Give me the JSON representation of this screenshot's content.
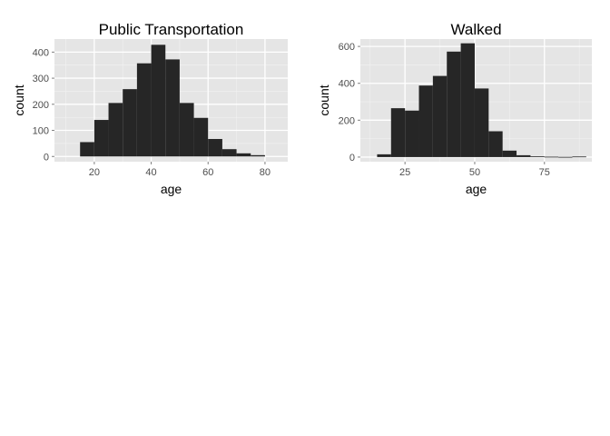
{
  "chart_data": [
    {
      "type": "bar",
      "title": "Public Transportation",
      "xlabel": "age",
      "ylabel": "count",
      "xlim": [
        6,
        88
      ],
      "ylim": [
        -20,
        450
      ],
      "xticks": [
        20,
        40,
        60,
        80
      ],
      "yticks": [
        0,
        100,
        200,
        300,
        400
      ],
      "binwidth": 5,
      "bins": [
        15,
        20,
        25,
        30,
        35,
        40,
        45,
        50,
        55,
        60,
        65,
        70,
        75
      ],
      "values": [
        55,
        140,
        205,
        258,
        357,
        428,
        372,
        205,
        148,
        67,
        28,
        12,
        5
      ],
      "grid": true
    },
    {
      "type": "bar",
      "title": "Walked",
      "xlabel": "age",
      "ylabel": "count",
      "xlim": [
        9,
        92
      ],
      "ylim": [
        -25,
        640
      ],
      "xticks": [
        25,
        50,
        75
      ],
      "yticks": [
        0,
        200,
        400,
        600
      ],
      "binwidth": 5,
      "bins": [
        15,
        20,
        25,
        30,
        35,
        40,
        45,
        50,
        55,
        60,
        65,
        70,
        75,
        80,
        85
      ],
      "values": [
        15,
        265,
        252,
        388,
        440,
        572,
        617,
        372,
        140,
        35,
        10,
        4,
        2,
        1,
        3
      ],
      "grid": true
    }
  ]
}
